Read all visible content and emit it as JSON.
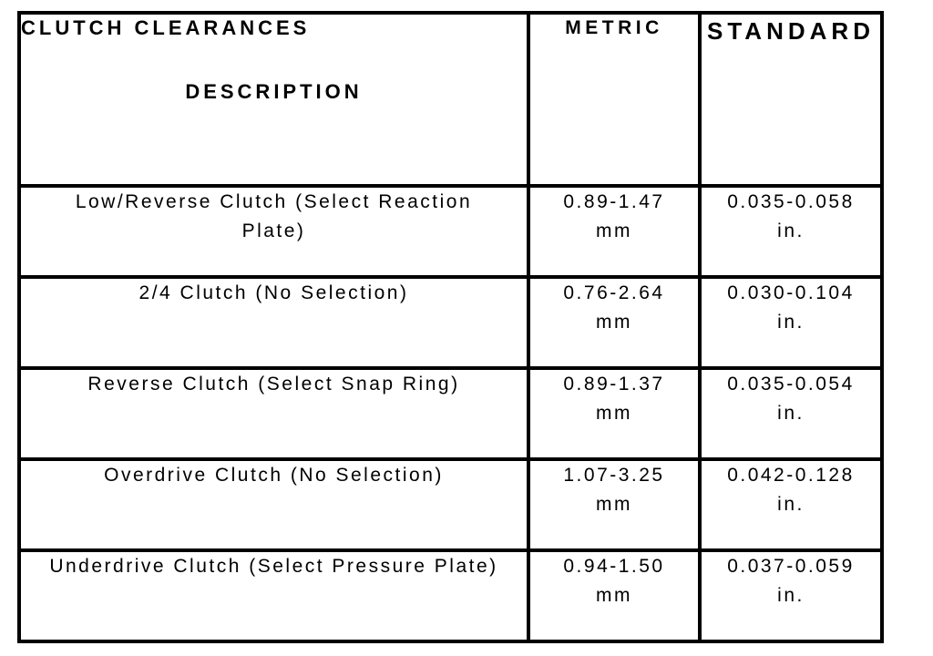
{
  "page": {
    "background_color": "#ffffff",
    "text_color": "#000000",
    "border_color": "#000000"
  },
  "table": {
    "title": "CLUTCH CLEARANCES",
    "columns": {
      "description": "DESCRIPTION",
      "metric": "METRIC",
      "standard": "STANDARD"
    },
    "rows": [
      {
        "description": "Low/Reverse Clutch (Select Reaction Plate)",
        "metric_value": "0.89-1.47",
        "metric_unit": "mm",
        "standard_value": "0.035-0.058",
        "standard_unit": "in."
      },
      {
        "description": "2/4 Clutch (No Selection)",
        "metric_value": "0.76-2.64",
        "metric_unit": "mm",
        "standard_value": "0.030-0.104",
        "standard_unit": "in."
      },
      {
        "description": "Reverse Clutch (Select Snap Ring)",
        "metric_value": "0.89-1.37",
        "metric_unit": "mm",
        "standard_value": "0.035-0.054",
        "standard_unit": "in."
      },
      {
        "description": "Overdrive Clutch (No Selection)",
        "metric_value": "1.07-3.25",
        "metric_unit": "mm",
        "standard_value": "0.042-0.128",
        "standard_unit": "in."
      },
      {
        "description": "Underdrive Clutch (Select Pressure Plate)",
        "metric_value": "0.94-1.50",
        "metric_unit": "mm",
        "standard_value": "0.037-0.059",
        "standard_unit": "in."
      }
    ]
  }
}
